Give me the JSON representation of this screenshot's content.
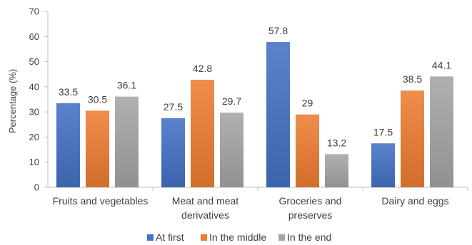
{
  "chart_data": {
    "type": "bar",
    "title": "",
    "xlabel": "",
    "ylabel": "Percentage (%)",
    "ylim": [
      0,
      70
    ],
    "yticks": [
      0,
      10,
      20,
      30,
      40,
      50,
      60,
      70
    ],
    "grid": false,
    "legend_position": "bottom",
    "categories": [
      [
        "Fruits and vegetables"
      ],
      [
        "Meat and meat",
        "derivatives"
      ],
      [
        "Groceries and",
        "preserves"
      ],
      [
        "Dairy and eggs"
      ]
    ],
    "series": [
      {
        "name": "At first",
        "values": [
          33.5,
          27.5,
          57.8,
          17.5
        ],
        "labels": [
          "33.5",
          "27.5",
          "57.8",
          "17.5"
        ],
        "color": "#4472C4"
      },
      {
        "name": "In the middle",
        "values": [
          30.5,
          42.8,
          29,
          38.5
        ],
        "labels": [
          "30.5",
          "42.8",
          "29",
          "38.5"
        ],
        "color": "#ED7D31"
      },
      {
        "name": "In the end",
        "values": [
          36.1,
          29.7,
          13.2,
          44.1
        ],
        "labels": [
          "36.1",
          "29.7",
          "13.2",
          "44.1"
        ],
        "color": "#A5A5A5"
      }
    ]
  }
}
